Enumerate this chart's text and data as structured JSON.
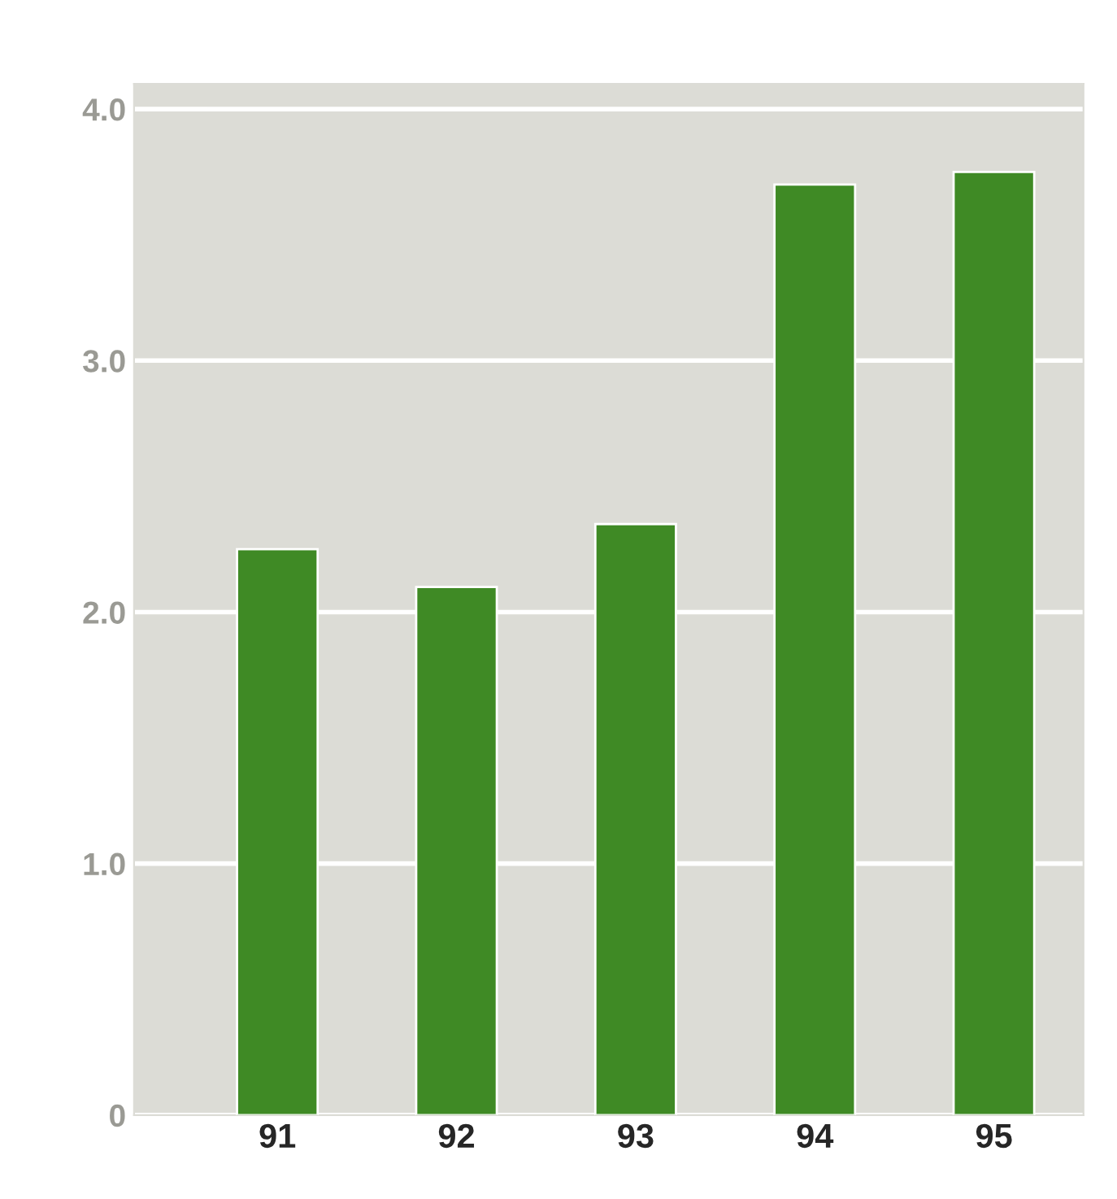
{
  "chart_data": {
    "type": "bar",
    "categories": [
      "91",
      "92",
      "93",
      "94",
      "95"
    ],
    "values": [
      2.25,
      2.1,
      2.35,
      3.7,
      3.75
    ],
    "color": "#3f8a25",
    "ylim": [
      0,
      4.1
    ],
    "yticks": [
      0,
      {
        "value": 1,
        "label": "1.0"
      },
      {
        "value": 2,
        "label": "2.0"
      },
      {
        "value": 3,
        "label": "3.0"
      },
      {
        "value": 4,
        "label": "4.0"
      }
    ],
    "grid": "y"
  }
}
